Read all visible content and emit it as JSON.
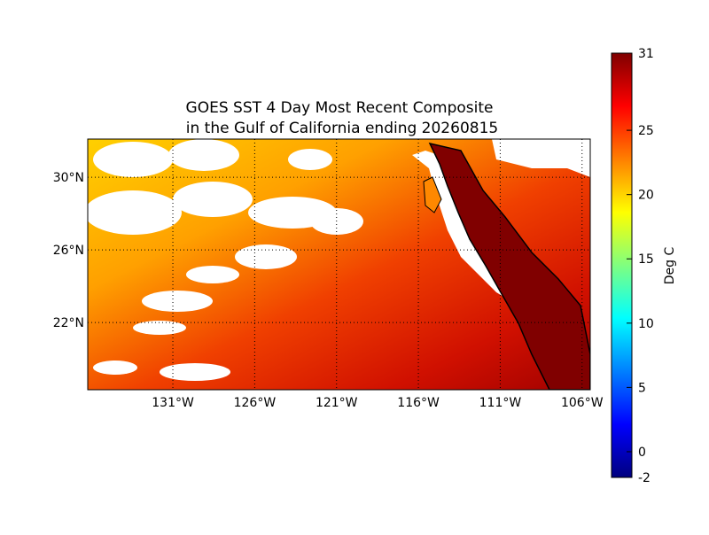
{
  "map": {
    "title": [
      "GOES SST 4 Day Most Recent Composite",
      "in the Gulf of California ending 20260815"
    ],
    "xlim": [
      -136.2,
      -105.5
    ],
    "ylim": [
      18.3,
      32.1
    ],
    "lon_ticks": [
      {
        "value": -131,
        "label": "131°W"
      },
      {
        "value": -126,
        "label": "126°W"
      },
      {
        "value": -121,
        "label": "121°W"
      },
      {
        "value": -116,
        "label": "116°W"
      },
      {
        "value": -111,
        "label": "111°W"
      },
      {
        "value": -106,
        "label": "106°W"
      }
    ],
    "lat_ticks": [
      {
        "value": 30,
        "label": "30°N"
      },
      {
        "value": 26,
        "label": "26°N"
      },
      {
        "value": 22,
        "label": "22°N"
      }
    ]
  },
  "colorbar": {
    "label": "Deg C",
    "range": [
      -2,
      31
    ],
    "ticks": [
      -2,
      0,
      5,
      10,
      15,
      20,
      25,
      31
    ]
  }
}
